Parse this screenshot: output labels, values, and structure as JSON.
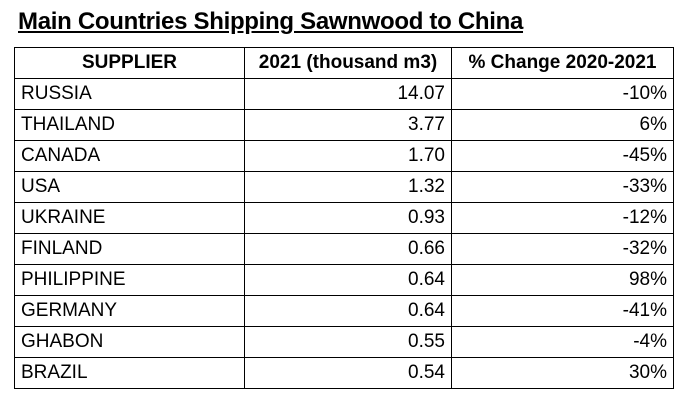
{
  "title": "Main Countries Shipping Sawnwood to China",
  "table": {
    "header": [
      "SUPPLIER",
      "2021 (thousand m3)",
      "% Change 2020-2021"
    ],
    "rows": [
      [
        "RUSSIA",
        "14.07",
        "-10%"
      ],
      [
        "THAILAND",
        "3.77",
        "6%"
      ],
      [
        "CANADA",
        "1.70",
        "-45%"
      ],
      [
        "USA",
        "1.32",
        "-33%"
      ],
      [
        "UKRAINE",
        "0.93",
        "-12%"
      ],
      [
        "FINLAND",
        "0.66",
        "-32%"
      ],
      [
        "PHILIPPINE",
        "0.64",
        "98%"
      ],
      [
        "GERMANY",
        "0.64",
        "-41%"
      ],
      [
        "GHABON",
        "0.55",
        "-4%"
      ],
      [
        "BRAZIL",
        "0.54",
        "30%"
      ]
    ]
  }
}
